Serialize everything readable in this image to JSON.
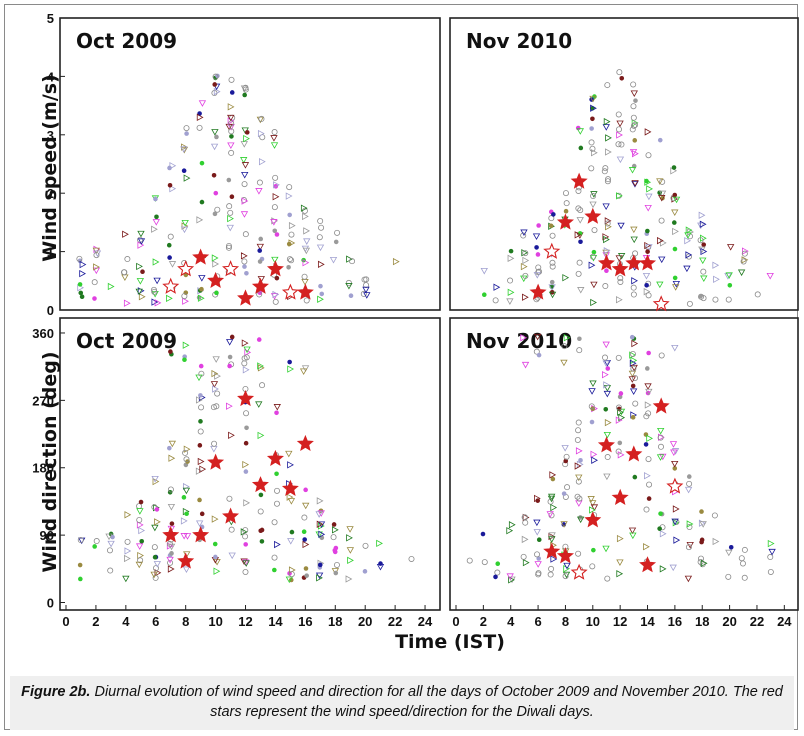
{
  "figure": {
    "caption_label": "Figure 2b.",
    "caption_text": "Diurnal evolution of wind speed and direction for all the days of October 2009 and November 2010. The red stars represent the wind speed/direction for the Diwali days."
  },
  "colors": {
    "diwali_star": "#d42020",
    "markers": [
      "#9a9a9a",
      "#e040e0",
      "#1a1a9a",
      "#207a20",
      "#9a8a40",
      "#7a1a1a",
      "#30d030",
      "#a0a0d0"
    ]
  },
  "chart_data": [
    {
      "type": "scatter",
      "title": "Oct 2009",
      "ylabel": "Wind speed (m/s)",
      "xlabel": "",
      "xlim": [
        0,
        25
      ],
      "ylim": [
        0,
        5
      ],
      "yticks": [
        0,
        1,
        2,
        3,
        4,
        5
      ],
      "xticks": [],
      "series": [
        {
          "name": "Diwali",
          "points": [
            [
              7,
              0.4
            ],
            [
              8,
              0.7
            ],
            [
              9,
              0.9
            ],
            [
              10,
              0.5
            ],
            [
              11,
              0.7
            ],
            [
              12,
              0.2
            ],
            [
              13,
              0.4
            ],
            [
              14,
              0.7
            ],
            [
              15,
              0.3
            ],
            [
              16,
              0.3
            ]
          ]
        }
      ]
    },
    {
      "type": "scatter",
      "title": "Nov 2010",
      "ylabel": "",
      "xlabel": "",
      "xlim": [
        0,
        25
      ],
      "ylim": [
        0,
        5
      ],
      "yticks": [],
      "xticks": [],
      "series": [
        {
          "name": "Diwali",
          "points": [
            [
              6,
              0.3
            ],
            [
              7,
              1.0
            ],
            [
              8,
              1.5
            ],
            [
              9,
              2.2
            ],
            [
              10,
              1.6
            ],
            [
              11,
              0.8
            ],
            [
              12,
              0.7
            ],
            [
              13,
              0.8
            ],
            [
              14,
              0.8
            ],
            [
              15,
              0.1
            ]
          ]
        }
      ]
    },
    {
      "type": "scatter",
      "title": "Oct 2009",
      "ylabel": "Wind direction (deg)",
      "xlabel": "Time (IST)",
      "xlim": [
        0,
        25
      ],
      "ylim": [
        -10,
        380
      ],
      "yticks": [
        0,
        90,
        180,
        270,
        360
      ],
      "xticks": [
        0,
        2,
        4,
        6,
        8,
        10,
        12,
        14,
        16,
        18,
        20,
        22,
        24
      ],
      "series": [
        {
          "name": "Diwali",
          "points": [
            [
              7,
              90
            ],
            [
              8,
              55
            ],
            [
              9,
              90
            ],
            [
              10,
              187
            ],
            [
              11,
              115
            ],
            [
              12,
              272
            ],
            [
              13,
              157
            ],
            [
              14,
              192
            ],
            [
              15,
              152
            ],
            [
              16,
              212
            ]
          ]
        }
      ]
    },
    {
      "type": "scatter",
      "title": "Nov 2010",
      "ylabel": "",
      "xlabel": "",
      "xlim": [
        0,
        25
      ],
      "ylim": [
        -10,
        380
      ],
      "yticks": [],
      "xticks": [
        0,
        2,
        4,
        6,
        8,
        10,
        12,
        14,
        16,
        18,
        20,
        22,
        24
      ],
      "series": [
        {
          "name": "Diwali",
          "points": [
            [
              7,
              68
            ],
            [
              8,
              62
            ],
            [
              9,
              40
            ],
            [
              10,
              110
            ],
            [
              11,
              210
            ],
            [
              12,
              140
            ],
            [
              13,
              198
            ],
            [
              14,
              50
            ],
            [
              15,
              262
            ],
            [
              16,
              155
            ]
          ]
        }
      ]
    }
  ]
}
